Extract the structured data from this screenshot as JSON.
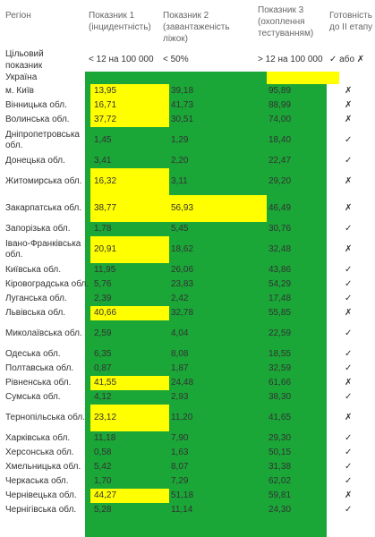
{
  "header": {
    "region": "Регіон",
    "p1": "Показник 1 (інцидентність)",
    "p2": "Показник 2 (завантаженість ліжок)",
    "p3": "Показник 3 (охоплення тестуванням)",
    "ready": "Готовність до ІІ етапу"
  },
  "target": {
    "label": "Цільовий показник",
    "p1": "< 12 на 100 000",
    "p2": "< 50%",
    "p3": "> 12 на 100 000",
    "ready": "✓ або ✗"
  },
  "rows": [
    {
      "region": "Україна",
      "v1": "",
      "v2": "",
      "v3": "",
      "ready": ""
    },
    {
      "region": "м. Київ",
      "v1": "13,95",
      "v2": "39,18",
      "v3": "95,89",
      "ready": "✗"
    },
    {
      "region": "Вінницька обл.",
      "v1": "16,71",
      "v2": "41,73",
      "v3": "88,99",
      "ready": "✗"
    },
    {
      "region": "Волинська обл.",
      "v1": "37,72",
      "v2": "30,51",
      "v3": "74,00",
      "ready": "✗"
    },
    {
      "region": "Дніпропетровська обл.",
      "v1": "1,45",
      "v2": "1,29",
      "v3": "18,40",
      "ready": "✓"
    },
    {
      "region": "Донецька обл.",
      "v1": "3,41",
      "v2": "2,20",
      "v3": "22,47",
      "ready": "✓"
    },
    {
      "region": "Житомирська обл.",
      "v1": "16,32",
      "v2": "3,11",
      "v3": "29,20",
      "ready": "✗"
    },
    {
      "region": "Закарпатська обл.",
      "v1": "38,77",
      "v2": "56,93",
      "v3": "46,49",
      "ready": "✗"
    },
    {
      "region": "Запорізька обл.",
      "v1": "1,78",
      "v2": "5,45",
      "v3": "30,76",
      "ready": "✓"
    },
    {
      "region": "Івано-Франківська обл.",
      "v1": "20,91",
      "v2": "18,62",
      "v3": "32,48",
      "ready": "✗"
    },
    {
      "region": "Київська обл.",
      "v1": "11,95",
      "v2": "26,06",
      "v3": "43,86",
      "ready": "✓"
    },
    {
      "region": "Кіровоградська обл.",
      "v1": "5,76",
      "v2": "23,83",
      "v3": "54,29",
      "ready": "✓"
    },
    {
      "region": "Луганська обл.",
      "v1": "2,39",
      "v2": "2,42",
      "v3": "17,48",
      "ready": "✓"
    },
    {
      "region": "Львівська обл.",
      "v1": "40,66",
      "v2": "32,78",
      "v3": "55,85",
      "ready": "✗"
    },
    {
      "region": "Миколаївська обл.",
      "v1": "2,59",
      "v2": "4,04",
      "v3": "22,59",
      "ready": "✓"
    },
    {
      "region": "Одеська обл.",
      "v1": "6,35",
      "v2": "8,08",
      "v3": "18,55",
      "ready": "✓"
    },
    {
      "region": "Полтавська обл.",
      "v1": "0,87",
      "v2": "1,87",
      "v3": "32,59",
      "ready": "✓"
    },
    {
      "region": "Рівненська обл.",
      "v1": "41,55",
      "v2": "24,48",
      "v3": "61,66",
      "ready": "✗"
    },
    {
      "region": "Сумська обл.",
      "v1": "4,12",
      "v2": "2,93",
      "v3": "38,30",
      "ready": "✓"
    },
    {
      "region": "Тернопільська обл.",
      "v1": "23,12",
      "v2": "11,20",
      "v3": "41,65",
      "ready": "✗"
    },
    {
      "region": "Харківська обл.",
      "v1": "11,18",
      "v2": "7,90",
      "v3": "29,30",
      "ready": "✓"
    },
    {
      "region": "Херсонська обл.",
      "v1": "0,58",
      "v2": "1,63",
      "v3": "50,15",
      "ready": "✓"
    },
    {
      "region": "Хмельницька обл.",
      "v1": "5,42",
      "v2": "8,07",
      "v3": "31,38",
      "ready": "✓"
    },
    {
      "region": "Черкаська обл.",
      "v1": "1,70",
      "v2": "7,29",
      "v3": "62,02",
      "ready": "✓"
    },
    {
      "region": "Чернівецька обл.",
      "v1": "44,27",
      "v2": "51,18",
      "v3": "59,81",
      "ready": "✗"
    },
    {
      "region": "Чернігівська обл.",
      "v1": "5,28",
      "v2": "11,14",
      "v3": "24,30",
      "ready": "✓"
    }
  ],
  "colors": {
    "pass": "#1ba638",
    "fail": "#ffff00"
  }
}
